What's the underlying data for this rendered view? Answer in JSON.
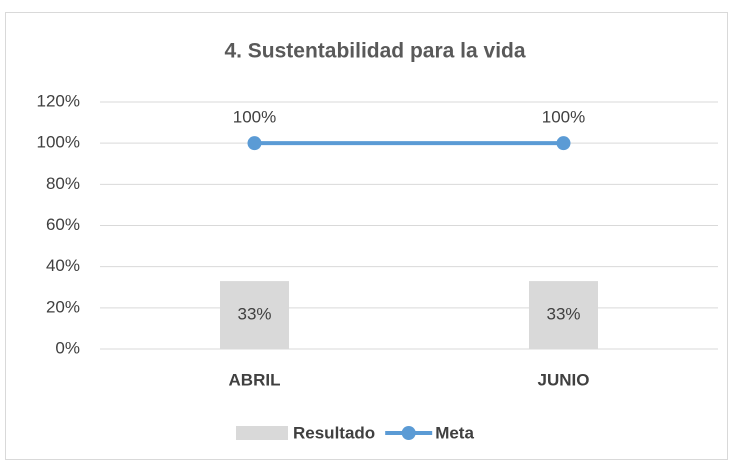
{
  "chart_data": {
    "type": "bar_line",
    "title": "4. Sustentabilidad para la vida",
    "categories": [
      "ABRIL",
      "JUNIO"
    ],
    "series": [
      {
        "name": "Resultado",
        "type": "bar",
        "color": "#d9d9d9",
        "values": [
          33,
          33
        ],
        "value_labels": [
          "33%",
          "33%"
        ]
      },
      {
        "name": "Meta",
        "type": "line",
        "color": "#5b9bd5",
        "values": [
          100,
          100
        ],
        "value_labels": [
          "100%",
          "100%"
        ]
      }
    ],
    "ylim": [
      0,
      120
    ],
    "yticks": [
      {
        "value": 0,
        "label": "0%"
      },
      {
        "value": 20,
        "label": "20%"
      },
      {
        "value": 40,
        "label": "40%"
      },
      {
        "value": 60,
        "label": "60%"
      },
      {
        "value": 80,
        "label": "80%"
      },
      {
        "value": 100,
        "label": "100%"
      },
      {
        "value": 120,
        "label": "120%"
      }
    ],
    "grid": true,
    "legend": "bottom"
  }
}
